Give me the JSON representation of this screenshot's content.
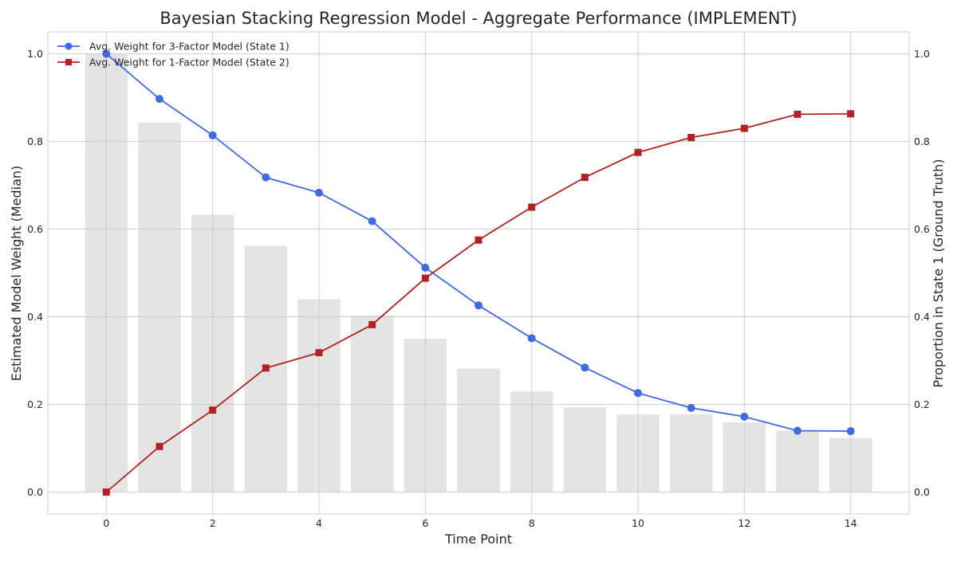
{
  "chart_data": {
    "type": "line",
    "title": "Bayesian Stacking Regression Model - Aggregate Performance (IMPLEMENT)",
    "xlabel": "Time Point",
    "ylabel_left": "Estimated Model Weight (Median)",
    "ylabel_right": "Proportion in State 1 (Ground Truth)",
    "x": [
      0,
      1,
      2,
      3,
      4,
      5,
      6,
      7,
      8,
      9,
      10,
      11,
      12,
      13,
      14
    ],
    "xlim": [
      -1.1,
      15.1
    ],
    "ylim": [
      -0.05,
      1.05
    ],
    "y2lim": [
      -0.05,
      1.05
    ],
    "x_ticks": [
      0,
      2,
      4,
      6,
      8,
      10,
      12,
      14
    ],
    "y_ticks": [
      0.0,
      0.2,
      0.4,
      0.6,
      0.8,
      1.0
    ],
    "y2_ticks": [
      0.0,
      0.2,
      0.4,
      0.6,
      0.8,
      1.0
    ],
    "grid": true,
    "legend_position": "top-left",
    "series": [
      {
        "name": "Avg. Weight for 3-Factor Model (State 1)",
        "color": "#4169e1",
        "marker": "circle",
        "axis": "left",
        "values": [
          1.0,
          0.897,
          0.814,
          0.718,
          0.683,
          0.618,
          0.512,
          0.426,
          0.351,
          0.284,
          0.226,
          0.192,
          0.172,
          0.14,
          0.139
        ]
      },
      {
        "name": "Avg. Weight for 1-Factor Model (State 2)",
        "color": "#b22222",
        "marker": "square",
        "axis": "left",
        "values": [
          0.0,
          0.104,
          0.187,
          0.283,
          0.318,
          0.382,
          0.488,
          0.575,
          0.65,
          0.718,
          0.775,
          0.809,
          0.83,
          0.862,
          0.863
        ]
      }
    ],
    "bars": {
      "axis": "right",
      "color": "#e4e4e4",
      "values": [
        1.0,
        0.843,
        0.633,
        0.562,
        0.44,
        0.403,
        0.35,
        0.282,
        0.23,
        0.193,
        0.177,
        0.177,
        0.159,
        0.14,
        0.123
      ]
    }
  }
}
